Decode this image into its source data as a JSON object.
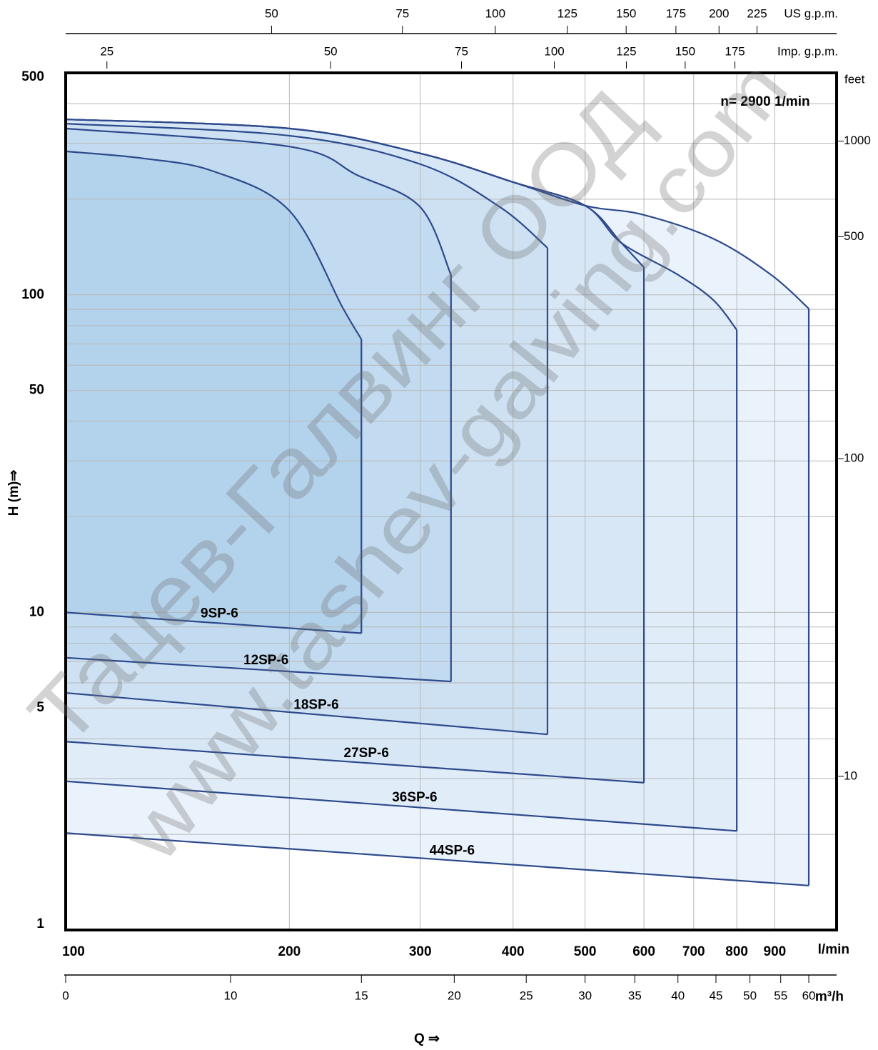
{
  "chart_data": {
    "type": "range",
    "annotation": "n= 2900 1/min",
    "xlabel": "Q ⇒",
    "ylabel": "H (m)⇒",
    "xunit": "l/min",
    "xscale": "log",
    "yscale": "log",
    "grid": true,
    "line_color": "#2e4a8c",
    "xlim": [
      100,
      1090
    ],
    "ylim": [
      1,
      500
    ],
    "xticks": [
      100,
      200,
      300,
      400,
      500,
      600,
      700,
      800,
      900
    ],
    "yticks": [
      1,
      5,
      10,
      50,
      100,
      500
    ],
    "yminor": [
      2,
      3,
      4,
      6,
      7,
      8,
      9,
      20,
      30,
      40,
      60,
      70,
      80,
      90,
      200,
      300,
      400
    ],
    "top_axes": [
      {
        "unit": "US g.p.m.",
        "xlim": [
          26.42,
          287.9
        ],
        "xticks": [
          50,
          75,
          100,
          125,
          150,
          175,
          200,
          225
        ]
      },
      {
        "unit": "Imp. g.p.m.",
        "xlim": [
          22.0,
          239.8
        ],
        "xticks": [
          25,
          50,
          75,
          100,
          125,
          150,
          175
        ]
      }
    ],
    "bottom_axis": {
      "unit": "m³/h",
      "xlim": [
        6,
        65.4
      ],
      "xticks": [
        0,
        10,
        15,
        20,
        25,
        30,
        35,
        40,
        45,
        50,
        55,
        60
      ]
    },
    "right_axis": {
      "unit": "feet",
      "ylim": [
        3.281,
        1640.4
      ],
      "yticks": [
        10,
        100,
        500,
        1000
      ]
    },
    "series": [
      {
        "name": "9SP-6",
        "color": "#b3d2eb",
        "x": [
          100,
          127,
          158,
          200,
          236,
          250
        ],
        "y": [
          283,
          269,
          245,
          184,
          91,
          72.5
        ],
        "min_x": [
          100,
          250
        ],
        "min_y": [
          10,
          8.6
        ]
      },
      {
        "name": "12SP-6",
        "color": "#c2dbf0",
        "x": [
          100,
          200,
          247,
          300,
          330
        ],
        "y": [
          334,
          293,
          238,
          189,
          115.6
        ],
        "min_x": [
          100,
          330
        ],
        "min_y": [
          7.2,
          6.06
        ]
      },
      {
        "name": "18SP-6",
        "color": "#cde1f3",
        "x": [
          100,
          200,
          300,
          384,
          445
        ],
        "y": [
          346,
          317,
          258,
          189,
          140.6
        ],
        "min_x": [
          100,
          445
        ],
        "min_y": [
          5.58,
          4.13
        ]
      },
      {
        "name": "27SP-6",
        "color": "#d7e7f6",
        "x": [
          100,
          200,
          300,
          401,
          500,
          559,
          600
        ],
        "y": [
          357,
          334,
          279,
          226,
          191,
          146,
          122
        ],
        "min_x": [
          100,
          600
        ],
        "min_y": [
          3.92,
          2.91
        ]
      },
      {
        "name": "36SP-6",
        "color": "#e0ecf8",
        "x": [
          100,
          200,
          300,
          401,
          500,
          559,
          667,
          745,
          800
        ],
        "y": [
          357,
          334,
          279,
          226,
          191,
          146,
          115.6,
          96,
          77.5
        ],
        "min_x": [
          100,
          800
        ],
        "min_y": [
          2.94,
          2.05
        ]
      },
      {
        "name": "44SP-6",
        "color": "#eaf2fb",
        "x": [
          100,
          200,
          300,
          401,
          500,
          597,
          745,
          890,
          1000
        ],
        "y": [
          357,
          334,
          279,
          226,
          191,
          179,
          150,
          115.6,
          90.5
        ],
        "min_x": [
          100,
          1000
        ],
        "min_y": [
          2.02,
          1.38
        ]
      }
    ]
  },
  "watermark": [
    "Тацев-Галвинг ООД",
    "www.tashev-galving.com"
  ]
}
